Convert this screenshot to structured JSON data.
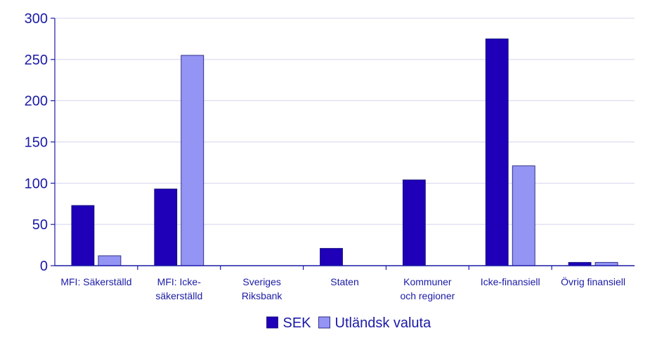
{
  "chart_data": {
    "type": "bar",
    "title": "",
    "xlabel": "",
    "ylabel": "",
    "ylim": [
      0,
      300
    ],
    "yticks": [
      0,
      50,
      100,
      150,
      200,
      250,
      300
    ],
    "categories": [
      [
        "MFI: Säkerställd"
      ],
      [
        "MFI: Icke-",
        "säkerställd"
      ],
      [
        "Sveriges",
        "Riksbank"
      ],
      [
        "Staten"
      ],
      [
        "Kommuner",
        "och regioner"
      ],
      [
        "Icke-finansiell"
      ],
      [
        "Övrig finansiell"
      ]
    ],
    "series": [
      {
        "name": "SEK",
        "color": "#1f00b8",
        "values": [
          73,
          93,
          0,
          21,
          104,
          275,
          4
        ]
      },
      {
        "name": "Utländsk valuta",
        "color": "#9494f5",
        "values": [
          12,
          255,
          0,
          0,
          0,
          121,
          4
        ]
      }
    ],
    "grid": true,
    "legend": "bottom-center"
  },
  "colors": {
    "axis": "#1a1aa6",
    "gridline": "#d4d4ee",
    "bar_stroke": "#0c0c6e"
  }
}
